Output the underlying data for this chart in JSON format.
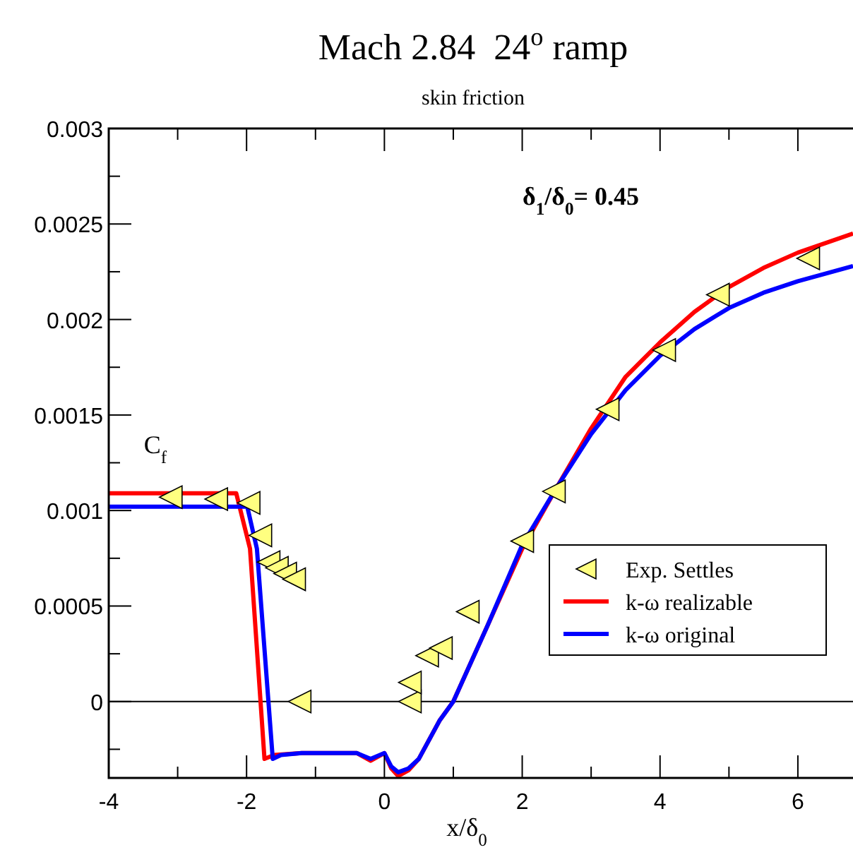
{
  "chart_data": {
    "type": "line",
    "title": "Mach 2.84  24$^{o}$ ramp",
    "subtitle": "skin friction",
    "xlabel": "x/δ$_{0}$",
    "ylabel": "C$_{f}$",
    "annotations": [
      "δ$_{1}$/δ$_{0}$= 0.45"
    ],
    "xlim": [
      -4,
      6.8
    ],
    "ylim": [
      -0.0004,
      0.003
    ],
    "xticks": [
      -4,
      {
        "value": -3,
        "label": null
      },
      -2,
      {
        "value": -1,
        "label": null
      },
      0,
      {
        "value": 1,
        "label": null
      },
      2,
      {
        "value": 3,
        "label": null
      },
      4,
      {
        "value": 5,
        "label": null
      },
      6
    ],
    "yticks": [
      {
        "value": -0.00025,
        "label": null
      },
      0,
      {
        "value": 0.00025,
        "label": null
      },
      0.0005,
      {
        "value": 0.00075,
        "label": null
      },
      0.001,
      {
        "value": 0.00125,
        "label": null
      },
      0.0015,
      {
        "value": 0.00175,
        "label": null
      },
      0.002,
      {
        "value": 0.00225,
        "label": null
      },
      0.0025,
      {
        "value": 0.00275,
        "label": null
      },
      0.003
    ],
    "ref_lines": [
      {
        "axis": "y",
        "value": 0,
        "color": "#000000"
      }
    ],
    "legend": "bottom right",
    "grid": false,
    "series": [
      {
        "name": "Exp. Settles",
        "type": "scatter",
        "marker": "triangle",
        "color": "#ffff80",
        "x": [
          -3.1,
          -2.44,
          -1.97,
          -1.8,
          -1.68,
          -1.56,
          -1.44,
          -1.31,
          -1.23,
          0.37,
          0.37,
          0.62,
          0.82,
          1.21,
          2.0,
          2.46,
          3.24,
          4.06,
          4.84,
          6.15
        ],
        "values": [
          0.00107,
          0.00106,
          0.00104,
          0.00087,
          0.00073,
          0.0007,
          0.00067,
          0.00064,
          0.0,
          0.0,
          0.0001,
          0.00024,
          0.00028,
          0.00047,
          0.00084,
          0.0011,
          0.00153,
          0.00184,
          0.00213,
          0.00232
        ]
      },
      {
        "name": "k-ω realizable",
        "color": "#ff0000",
        "x": [
          -4,
          -3,
          -2.15,
          -1.95,
          -1.74,
          -1.6,
          -1.2,
          -0.4,
          -0.2,
          0,
          0.1,
          0.2,
          0.35,
          0.5,
          0.8,
          1.0,
          1.5,
          2.0,
          2.5,
          3.0,
          3.5,
          4.0,
          4.5,
          5.0,
          5.5,
          6.0,
          6.8
        ],
        "values": [
          0.00109,
          0.00109,
          0.00109,
          0.0008,
          -0.0003,
          -0.00028,
          -0.00027,
          -0.00027,
          -0.00031,
          -0.00027,
          -0.00035,
          -0.00039,
          -0.00036,
          -0.0003,
          -0.0001,
          0.0,
          0.0004,
          0.0008,
          0.00112,
          0.00143,
          0.0017,
          0.00188,
          0.00204,
          0.00217,
          0.00227,
          0.00235,
          0.00245
        ]
      },
      {
        "name": "k-ω original",
        "color": "#0000ff",
        "x": [
          -4,
          -3,
          -1.99,
          -1.85,
          -1.62,
          -1.5,
          -1.2,
          -0.4,
          -0.2,
          0,
          0.1,
          0.2,
          0.35,
          0.5,
          0.8,
          1.0,
          1.5,
          2.0,
          2.5,
          3.0,
          3.5,
          4.0,
          4.5,
          5.0,
          5.5,
          6.0,
          6.8
        ],
        "values": [
          0.00102,
          0.00102,
          0.00102,
          0.0008,
          -0.0003,
          -0.00028,
          -0.00027,
          -0.00027,
          -0.0003,
          -0.00027,
          -0.00034,
          -0.00037,
          -0.00035,
          -0.0003,
          -0.0001,
          0.0,
          0.0004,
          0.00082,
          0.00112,
          0.0014,
          0.00163,
          0.00181,
          0.00195,
          0.00206,
          0.00214,
          0.0022,
          0.00228
        ]
      }
    ]
  }
}
